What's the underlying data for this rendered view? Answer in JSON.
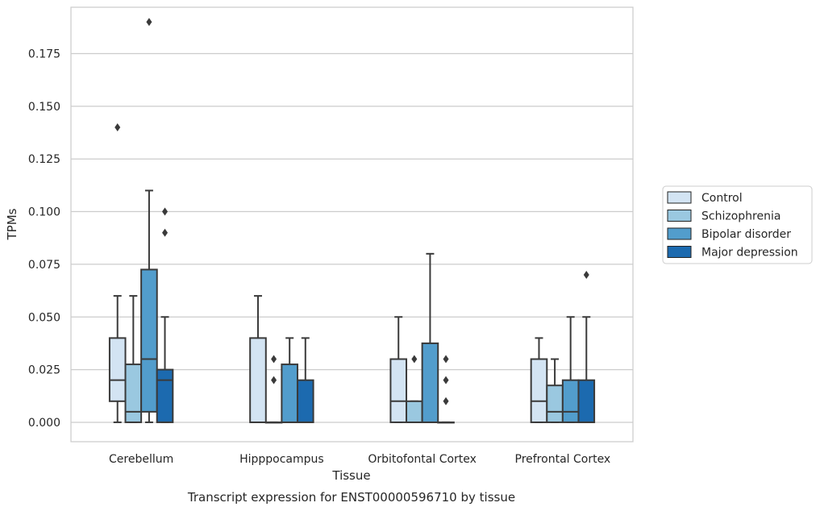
{
  "chart_data": {
    "type": "box",
    "title": "Transcript expression for ENST00000596710 by tissue",
    "xlabel": "Tissue",
    "ylabel": "TPMs",
    "ylim": [
      -0.0092,
      0.197
    ],
    "y_ticks": [
      "0.000",
      "0.025",
      "0.050",
      "0.075",
      "0.100",
      "0.125",
      "0.150",
      "0.175"
    ],
    "y_tick_values": [
      0,
      0.025,
      0.05,
      0.075,
      0.1,
      0.125,
      0.15,
      0.175
    ],
    "categories": [
      "Cerebellum",
      "Hipppocampus",
      "Orbitofontal Cortex",
      "Prefrontal Cortex"
    ],
    "grid": true,
    "legend_position": "right",
    "series": [
      {
        "name": "Control",
        "color": "#d3e4f3",
        "boxes": [
          {
            "whislo": 0,
            "q1": 0.01,
            "med": 0.02,
            "q3": 0.04,
            "whishi": 0.06,
            "fliers": [
              0.14
            ]
          },
          {
            "whislo": 0,
            "q1": 0,
            "med": 0,
            "q3": 0.04,
            "whishi": 0.06,
            "fliers": []
          },
          {
            "whislo": 0,
            "q1": 0,
            "med": 0.01,
            "q3": 0.03,
            "whishi": 0.05,
            "fliers": []
          },
          {
            "whislo": 0,
            "q1": 0,
            "med": 0.01,
            "q3": 0.03,
            "whishi": 0.04,
            "fliers": []
          }
        ]
      },
      {
        "name": "Schizophrenia",
        "color": "#9ac8e0",
        "boxes": [
          {
            "whislo": 0,
            "q1": 0,
            "med": 0.005,
            "q3": 0.0275,
            "whishi": 0.06,
            "fliers": []
          },
          {
            "whislo": 0,
            "q1": 0,
            "med": 0,
            "q3": 0,
            "whishi": 0,
            "fliers": [
              0.03,
              0.02
            ]
          },
          {
            "whislo": 0,
            "q1": 0,
            "med": 0,
            "q3": 0.01,
            "whishi": 0.01,
            "fliers": [
              0.03
            ]
          },
          {
            "whislo": 0,
            "q1": 0,
            "med": 0.005,
            "q3": 0.0175,
            "whishi": 0.03,
            "fliers": []
          }
        ]
      },
      {
        "name": "Bipolar disorder",
        "color": "#529dcc",
        "boxes": [
          {
            "whislo": 0,
            "q1": 0.005,
            "med": 0.03,
            "q3": 0.0725,
            "whishi": 0.11,
            "fliers": [
              0.19
            ]
          },
          {
            "whislo": 0,
            "q1": 0,
            "med": 0,
            "q3": 0.0275,
            "whishi": 0.04,
            "fliers": []
          },
          {
            "whislo": 0,
            "q1": 0,
            "med": 0,
            "q3": 0.0375,
            "whishi": 0.08,
            "fliers": []
          },
          {
            "whislo": 0,
            "q1": 0,
            "med": 0.005,
            "q3": 0.02,
            "whishi": 0.05,
            "fliers": []
          }
        ]
      },
      {
        "name": "Major depression",
        "color": "#1c6aaf",
        "boxes": [
          {
            "whislo": 0,
            "q1": 0,
            "med": 0.02,
            "q3": 0.025,
            "whishi": 0.05,
            "fliers": [
              0.1,
              0.09
            ]
          },
          {
            "whislo": 0,
            "q1": 0,
            "med": 0,
            "q3": 0.02,
            "whishi": 0.04,
            "fliers": []
          },
          {
            "whislo": 0,
            "q1": 0,
            "med": 0,
            "q3": 0,
            "whishi": 0,
            "fliers": [
              0.03,
              0.02,
              0.01
            ]
          },
          {
            "whislo": 0,
            "q1": 0,
            "med": 0,
            "q3": 0.02,
            "whishi": 0.05,
            "fliers": [
              0.07
            ]
          }
        ]
      }
    ]
  }
}
